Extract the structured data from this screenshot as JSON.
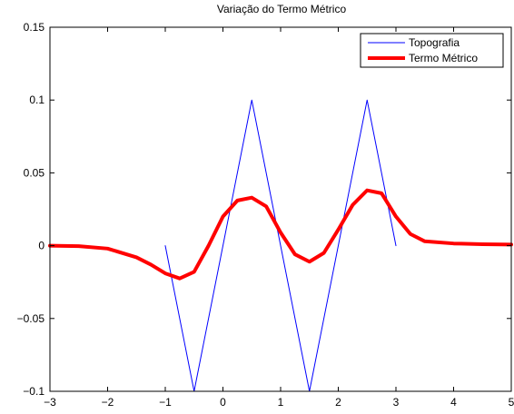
{
  "chart_data": {
    "type": "line",
    "title": "Variação do Termo Métrico",
    "xlabel": "",
    "ylabel": "",
    "xlim": [
      -3,
      5
    ],
    "ylim": [
      -0.1,
      0.15
    ],
    "xticks": [
      -3,
      -2,
      -1,
      0,
      1,
      2,
      3,
      4,
      5
    ],
    "yticks": [
      -0.1,
      -0.05,
      0,
      0.05,
      0.1,
      0.15
    ],
    "xtick_labels": [
      "−3",
      "−2",
      "−1",
      "0",
      "1",
      "2",
      "3",
      "4",
      "5"
    ],
    "ytick_labels": [
      "−0.1",
      "−0.05",
      "0",
      "0.05",
      "0.1",
      "0.15"
    ],
    "grid": false,
    "legend_position": "top-right",
    "series": [
      {
        "name": "Topografia",
        "color": "#0000ff",
        "line_width": "thin",
        "x": [
          -1,
          -0.5,
          0.5,
          1.5,
          2.5,
          3
        ],
        "y": [
          0,
          -0.1,
          0.1,
          -0.1,
          0.1,
          0
        ]
      },
      {
        "name": "Termo Métrico",
        "color": "#ff0000",
        "line_width": "thick",
        "x": [
          -3,
          -2.5,
          -2,
          -1.5,
          -1.25,
          -1,
          -0.75,
          -0.5,
          -0.25,
          0,
          0.25,
          0.5,
          0.75,
          1,
          1.25,
          1.5,
          1.75,
          2,
          2.25,
          2.5,
          2.75,
          3,
          3.25,
          3.5,
          4,
          4.5,
          5
        ],
        "y": [
          0,
          -0.0003,
          -0.002,
          -0.008,
          -0.013,
          -0.019,
          -0.0225,
          -0.018,
          0,
          0.02,
          0.031,
          0.033,
          0.027,
          0.009,
          -0.006,
          -0.011,
          -0.005,
          0.011,
          0.028,
          0.038,
          0.036,
          0.02,
          0.008,
          0.003,
          0.0015,
          0.001,
          0.0008
        ]
      }
    ]
  }
}
